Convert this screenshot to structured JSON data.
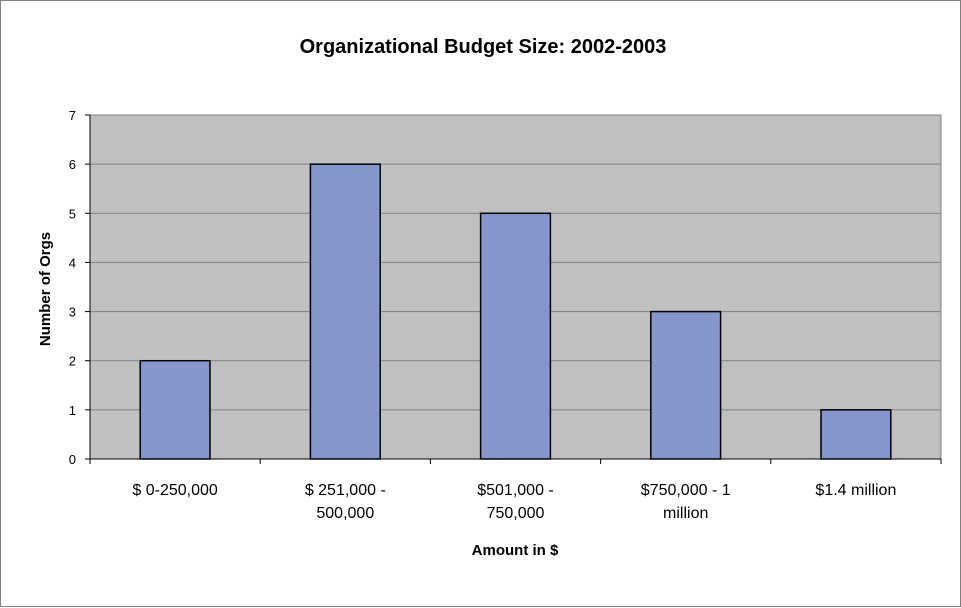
{
  "chart_data": {
    "type": "bar",
    "title": "Organizational Budget Size: 2002-2003",
    "xlabel": "Amount in $",
    "ylabel": "Number of Orgs",
    "categories": [
      [
        "$ 0-250,000"
      ],
      [
        "$ 251,000 -",
        "500,000"
      ],
      [
        "$501,000 -",
        "750,000"
      ],
      [
        "$750,000 - 1",
        "million"
      ],
      [
        "$1.4 million"
      ]
    ],
    "values": [
      2,
      6,
      5,
      3,
      1
    ],
    "ylim": [
      0,
      7
    ],
    "yticks": [
      "0",
      "1",
      "2",
      "3",
      "4",
      "5",
      "6",
      "7"
    ],
    "grid": true,
    "legend": "none",
    "colors": {
      "plot_background": "#c0c0c0",
      "bar_fill": "#8596cc",
      "bar_stroke": "#000000",
      "gridline": "#808080"
    }
  }
}
